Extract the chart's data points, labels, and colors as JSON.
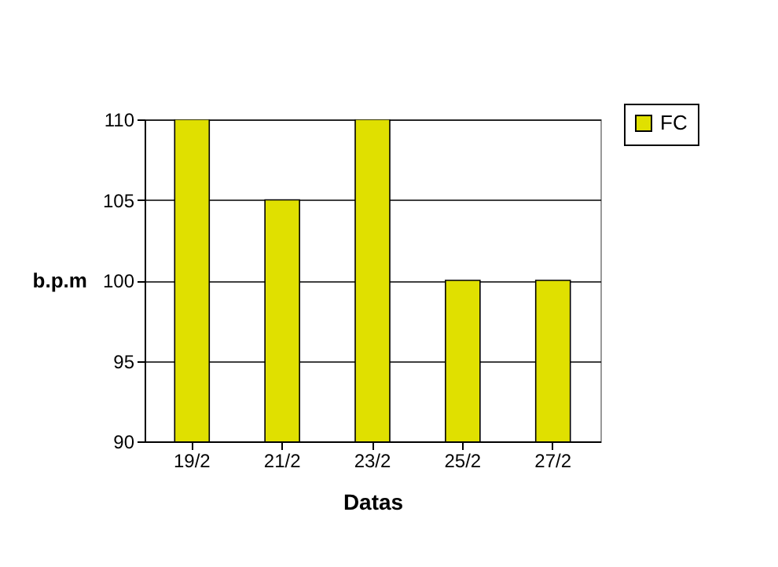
{
  "chart_data": {
    "type": "bar",
    "xlabel": "Datas",
    "ylabel": "b.p.m",
    "categories": [
      "19/2",
      "21/2",
      "23/2",
      "25/2",
      "27/2"
    ],
    "series": [
      {
        "name": "FC",
        "color": "#e0e000",
        "values": [
          110,
          105,
          110,
          100,
          100
        ]
      }
    ],
    "ylim": [
      90,
      110
    ],
    "yticks": [
      90,
      95,
      100,
      105,
      110
    ],
    "grid": "y",
    "legend": "top right"
  }
}
